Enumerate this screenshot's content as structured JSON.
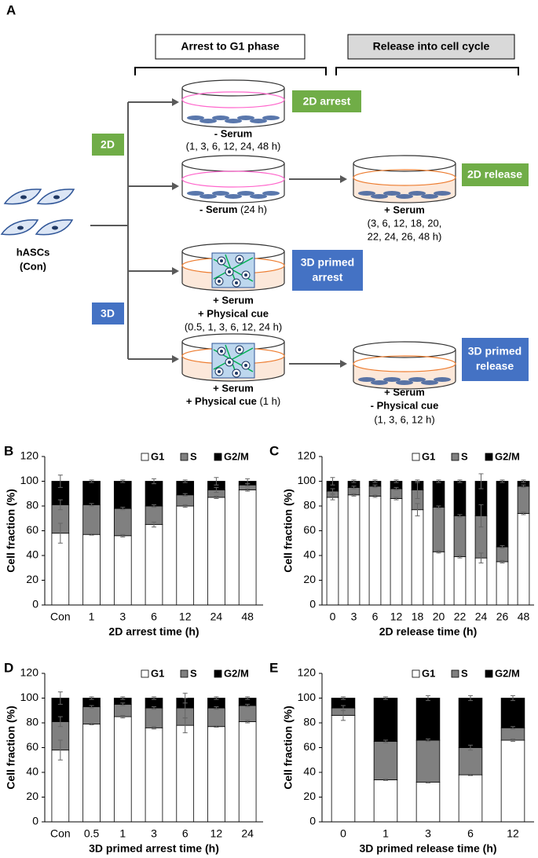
{
  "diagram": {
    "panel": "A",
    "stage_headers": [
      "Arrest to G1 phase",
      "Release into cell cycle"
    ],
    "groups": [
      "2D",
      "3D"
    ],
    "source": [
      "hASCs",
      "(Con)"
    ],
    "conditions": [
      {
        "tag": [
          "2D arrest"
        ],
        "lines": [
          "- Serum",
          "(1, 3, 6, 12, 24, 48 h)"
        ]
      },
      {
        "lines": [
          "- Serum",
          "(24 h)"
        ]
      },
      {
        "tag": [
          "2D release"
        ],
        "lines": [
          "+ Serum",
          "(3, 6, 12, 18, 20,",
          "22, 24, 26, 48 h)"
        ]
      },
      {
        "tag": [
          "3D primed",
          "arrest"
        ],
        "lines": [
          "+ Serum",
          "+ Physical cue",
          "(0.5, 1, 3, 6, 12, 24 h)"
        ]
      },
      {
        "lines": [
          "+ Serum",
          "+ Physical cue",
          "(1 h)"
        ]
      },
      {
        "tag": [
          "3D primed",
          "release"
        ],
        "lines": [
          "+ Serum",
          "- Physical cue",
          "(1, 3, 6, 12 h)"
        ]
      }
    ]
  },
  "chart_data": [
    {
      "type": "bar",
      "panel": "B",
      "y_label": "Cell fraction (%)",
      "x_label": "2D arrest time (h)",
      "categories": [
        "Con",
        "1",
        "3",
        "6",
        "12",
        "24",
        "48"
      ],
      "series": [
        {
          "name": "G1",
          "color": "#ffffff",
          "values": [
            58,
            57,
            56,
            65,
            80,
            87,
            93
          ],
          "errors": [
            8,
            0.5,
            1,
            2,
            1,
            1,
            1
          ]
        },
        {
          "name": "S",
          "color": "#808080",
          "values": [
            23,
            24,
            22,
            15,
            9,
            6,
            4
          ],
          "errors": [
            4,
            1,
            1,
            1,
            1,
            2,
            1
          ]
        },
        {
          "name": "G2/M",
          "color": "#000000",
          "values": [
            19,
            19,
            22,
            20,
            11,
            7,
            3
          ],
          "errors": [
            5,
            1,
            1,
            2,
            1,
            3,
            2
          ]
        }
      ],
      "ylim": [
        0,
        120
      ],
      "yticks": [
        0,
        20,
        40,
        60,
        80,
        100,
        120
      ]
    },
    {
      "type": "bar",
      "panel": "C",
      "y_label": "Cell fraction (%)",
      "x_label": "2D release time (h)",
      "categories": [
        "0",
        "3",
        "6",
        "12",
        "18",
        "20",
        "22",
        "24",
        "26",
        "48"
      ],
      "series": [
        {
          "name": "G1",
          "color": "#ffffff",
          "values": [
            87,
            89,
            88,
            86,
            77,
            43,
            39,
            38,
            35,
            74
          ],
          "errors": [
            2,
            1,
            1,
            1,
            5,
            1,
            1,
            4,
            1,
            1
          ]
        },
        {
          "name": "S",
          "color": "#808080",
          "values": [
            5,
            6,
            8,
            8,
            16,
            36,
            33,
            34,
            12,
            22
          ],
          "errors": [
            2,
            1,
            1,
            1,
            7,
            1,
            1,
            9,
            1,
            1
          ]
        },
        {
          "name": "G2/M",
          "color": "#000000",
          "values": [
            8,
            5,
            4,
            6,
            7,
            21,
            28,
            28,
            53,
            4
          ],
          "errors": [
            3,
            1,
            1,
            1,
            1,
            1,
            1,
            6,
            1,
            1
          ]
        }
      ],
      "ylim": [
        0,
        120
      ],
      "yticks": [
        0,
        20,
        40,
        60,
        80,
        100,
        120
      ]
    },
    {
      "type": "bar",
      "panel": "D",
      "y_label": "Cell fraction (%)",
      "x_label": "3D primed arrest time (h)",
      "categories": [
        "Con",
        "0.5",
        "1",
        "3",
        "6",
        "12",
        "24"
      ],
      "series": [
        {
          "name": "G1",
          "color": "#ffffff",
          "values": [
            58,
            79,
            85,
            76,
            78,
            77,
            81
          ],
          "errors": [
            8,
            0.5,
            1,
            1,
            6,
            0.5,
            1
          ]
        },
        {
          "name": "S",
          "color": "#808080",
          "values": [
            23,
            14,
            10,
            16,
            14,
            15,
            13
          ],
          "errors": [
            4,
            1,
            1,
            1,
            8,
            1,
            1
          ]
        },
        {
          "name": "G2/M",
          "color": "#000000",
          "values": [
            19,
            7,
            5,
            8,
            8,
            8,
            6
          ],
          "errors": [
            5,
            1,
            1,
            1,
            4,
            1,
            1
          ]
        }
      ],
      "ylim": [
        0,
        120
      ],
      "yticks": [
        0,
        20,
        40,
        60,
        80,
        100,
        120
      ]
    },
    {
      "type": "bar",
      "panel": "E",
      "y_label": "Cell fraction (%)",
      "x_label": "3D primed release time (h)",
      "categories": [
        "0",
        "1",
        "3",
        "6",
        "12"
      ],
      "series": [
        {
          "name": "G1",
          "color": "#ffffff",
          "values": [
            86,
            34,
            32,
            38,
            66
          ],
          "errors": [
            4,
            0.5,
            0.5,
            0.5,
            1
          ]
        },
        {
          "name": "S",
          "color": "#808080",
          "values": [
            6,
            31,
            34,
            22,
            10
          ],
          "errors": [
            2,
            1,
            1,
            2,
            1
          ]
        },
        {
          "name": "G2/M",
          "color": "#000000",
          "values": [
            8,
            35,
            34,
            40,
            24
          ],
          "errors": [
            1,
            1,
            2,
            2,
            2
          ]
        }
      ],
      "ylim": [
        0,
        120
      ],
      "yticks": [
        0,
        20,
        40,
        60,
        80,
        100,
        120
      ]
    }
  ]
}
